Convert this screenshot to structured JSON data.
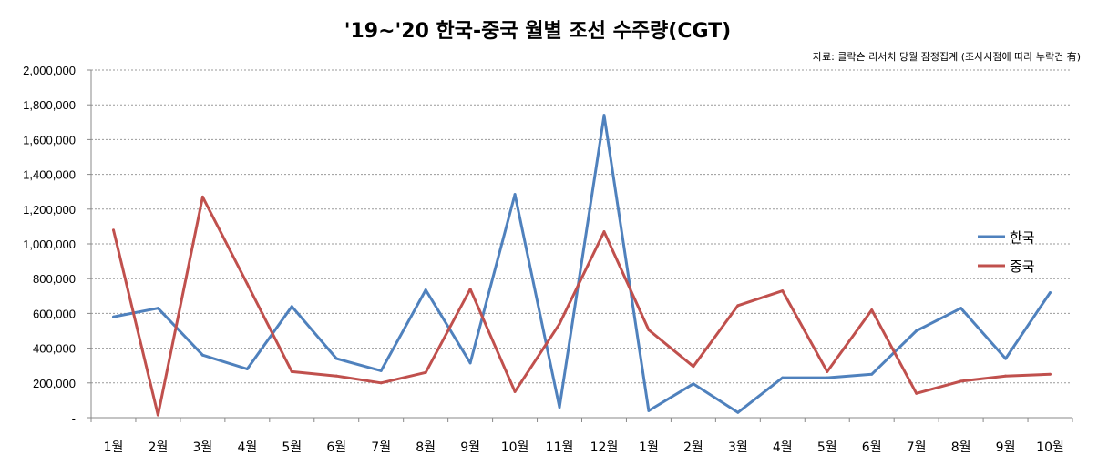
{
  "chart_data": {
    "type": "line",
    "title": "'19~'20 한국-중국 월별 조선 수주량(CGT)",
    "source": "자료: 클락슨 리서치 당월 잠정집계 (조사시점에 따라 누락건 有)",
    "categories": [
      "1월",
      "2월",
      "3월",
      "4월",
      "5월",
      "6월",
      "7월",
      "8월",
      "9월",
      "10월",
      "11월",
      "12월",
      "1월",
      "2월",
      "3월",
      "4월",
      "5월",
      "6월",
      "7월",
      "8월",
      "9월",
      "10월"
    ],
    "ylim": [
      0,
      2000000
    ],
    "y_ticks": [
      0,
      200000,
      400000,
      600000,
      800000,
      1000000,
      1200000,
      1400000,
      1600000,
      1800000,
      2000000
    ],
    "y_tick_labels": [
      "-",
      "200,000",
      "400,000",
      "600,000",
      "800,000",
      "1,000,000",
      "1,200,000",
      "1,400,000",
      "1,600,000",
      "1,800,000",
      "2,000,000"
    ],
    "grid": true,
    "legend_position": "right",
    "series": [
      {
        "name": "한국",
        "color": "#4F81BD",
        "values": [
          580000,
          630000,
          360000,
          280000,
          640000,
          340000,
          270000,
          735000,
          315000,
          1285000,
          60000,
          1740000,
          40000,
          195000,
          30000,
          230000,
          230000,
          250000,
          500000,
          630000,
          340000,
          720000
        ]
      },
      {
        "name": "중국",
        "color": "#C0504D",
        "values": [
          1080000,
          15000,
          1270000,
          770000,
          265000,
          240000,
          200000,
          260000,
          740000,
          150000,
          540000,
          1070000,
          505000,
          295000,
          645000,
          730000,
          265000,
          620000,
          140000,
          210000,
          240000,
          250000
        ]
      }
    ]
  }
}
